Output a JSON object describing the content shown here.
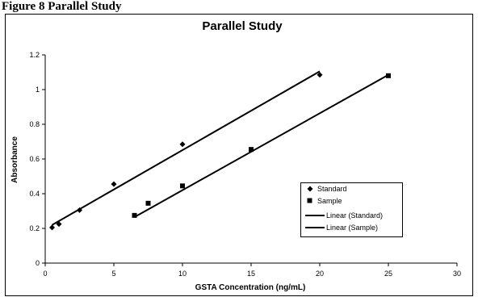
{
  "page": {
    "header_text": "Figure 8 Parallel Study"
  },
  "chart_data": {
    "type": "scatter",
    "title": "Parallel Study",
    "xlabel": "GSTA Concentration (ng/mL)",
    "ylabel": "Absorbance",
    "xlim": [
      0,
      30
    ],
    "ylim": [
      0,
      1.2
    ],
    "x_ticks": [
      0,
      5,
      10,
      15,
      20,
      25,
      30
    ],
    "x_tick_labels": [
      "0",
      "5",
      "10",
      "15",
      "20",
      "25",
      "30"
    ],
    "y_ticks": [
      0,
      0.2,
      0.4,
      0.6,
      0.8,
      1,
      1.2
    ],
    "y_tick_labels": [
      "0",
      "0.2",
      "0.4",
      "0.6",
      "0.8",
      "1",
      "1.2"
    ],
    "grid": false,
    "legend_position": "lower-right",
    "series": [
      {
        "name": "Standard",
        "marker": "diamond",
        "color": "#000000",
        "x": [
          0.5,
          1,
          2.5,
          5,
          10,
          20
        ],
        "y": [
          0.205,
          0.225,
          0.305,
          0.455,
          0.685,
          1.085
        ]
      },
      {
        "name": "Sample",
        "marker": "square",
        "color": "#000000",
        "x": [
          6.5,
          7.5,
          10,
          15,
          25
        ],
        "y": [
          0.275,
          0.345,
          0.445,
          0.655,
          1.08
        ]
      }
    ],
    "trendlines": [
      {
        "name": "Linear (Standard)",
        "series": "Standard",
        "color": "#000000",
        "x_range": [
          0.5,
          20
        ],
        "y_range": [
          0.22,
          1.105
        ]
      },
      {
        "name": "Linear (Sample)",
        "series": "Sample",
        "color": "#000000",
        "x_range": [
          6.5,
          25
        ],
        "y_range": [
          0.265,
          1.085
        ]
      }
    ]
  }
}
